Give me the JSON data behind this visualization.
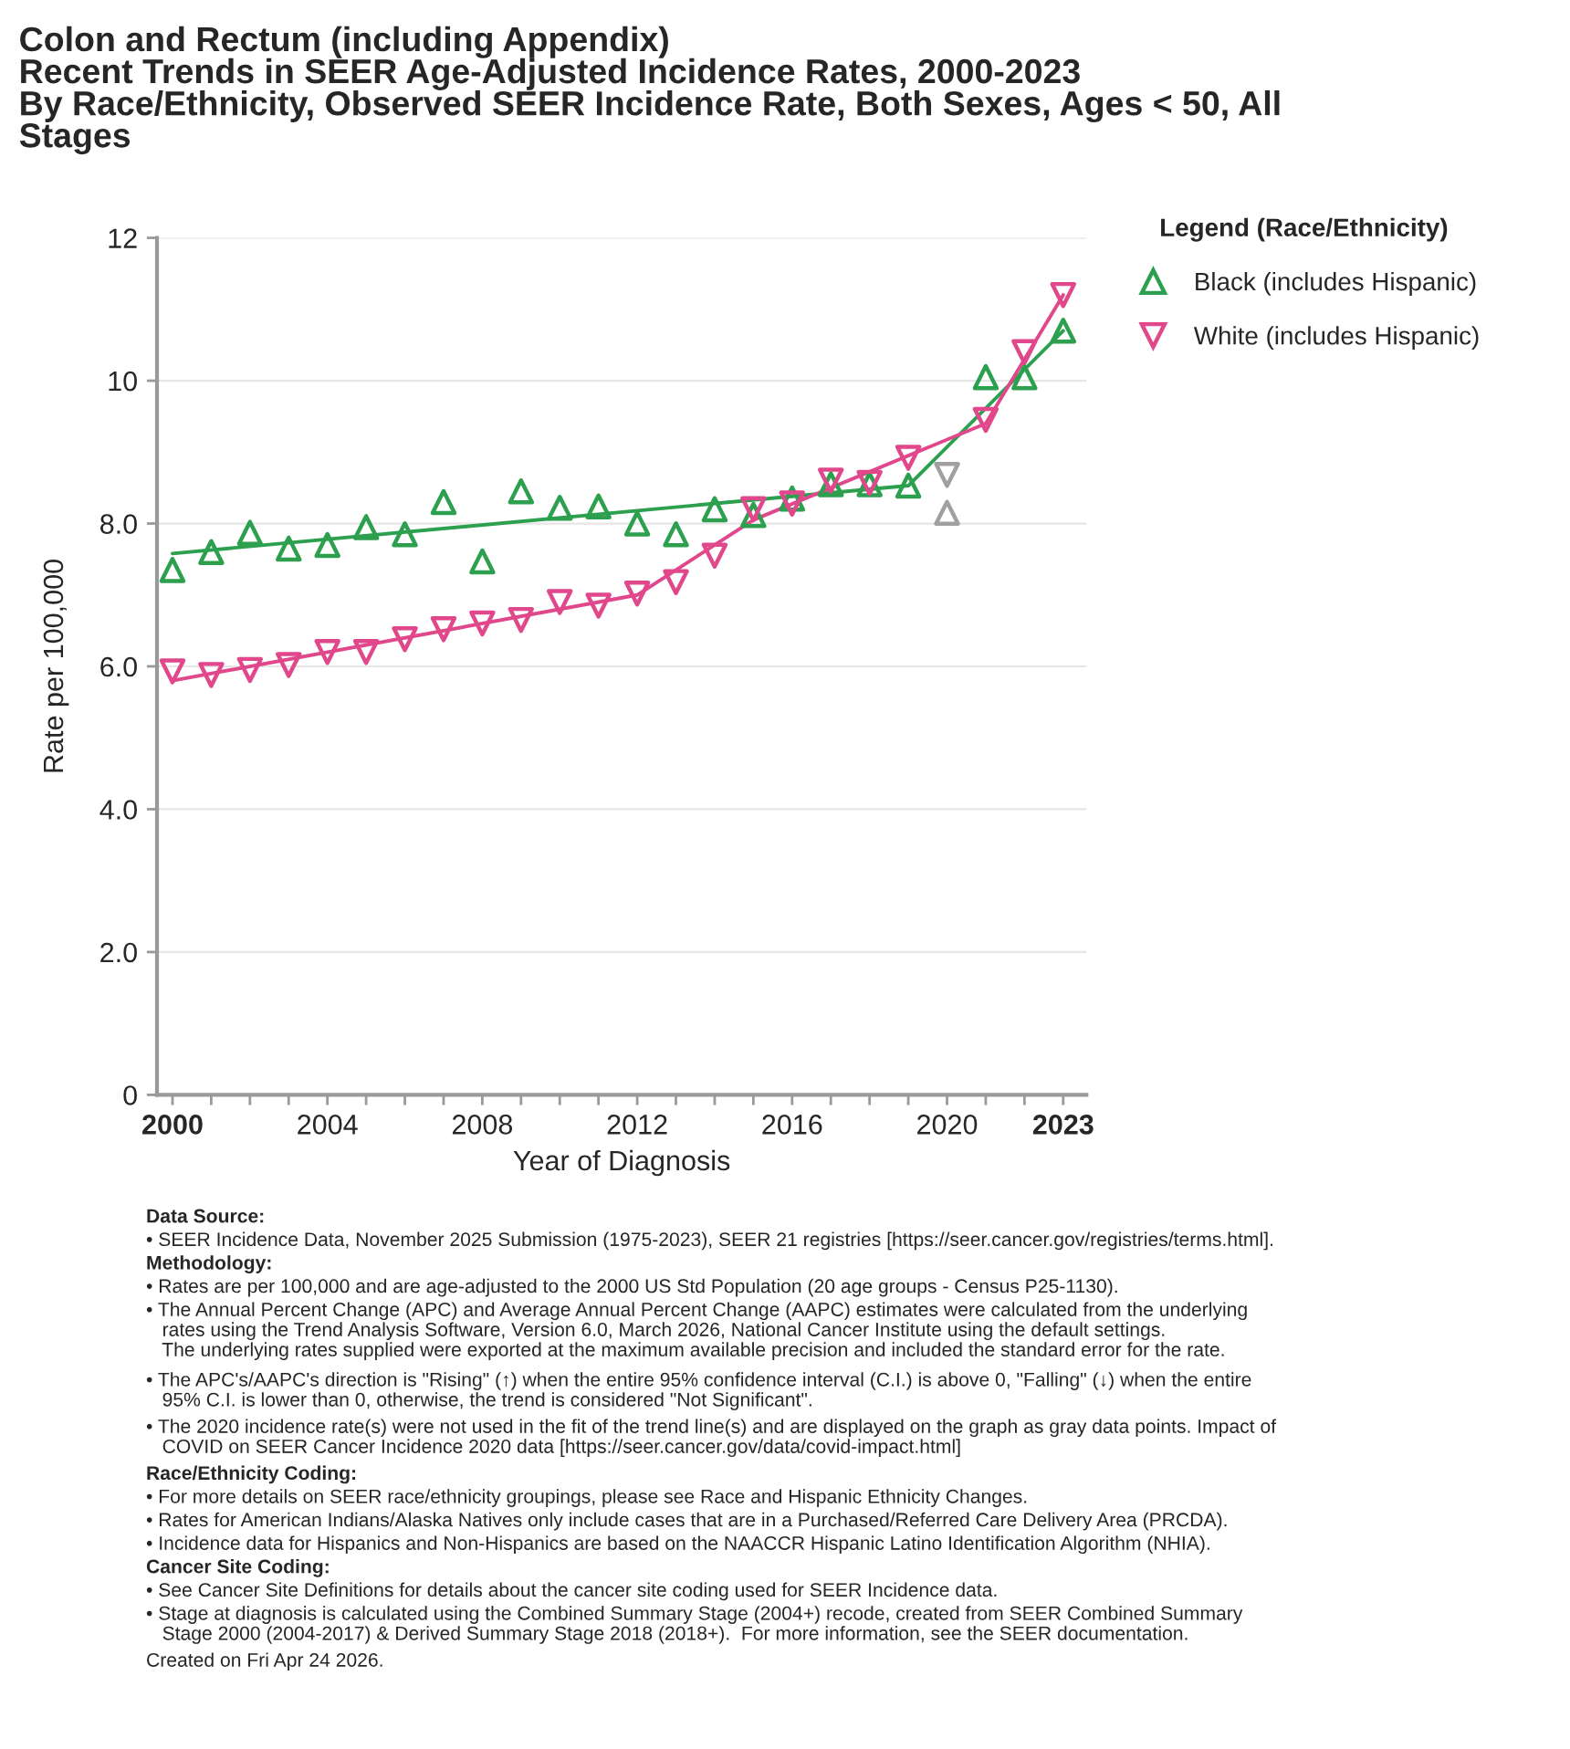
{
  "chart_data": {
    "type": "scatter",
    "title": "Colon and Rectum (including Appendix)\nRecent Trends in SEER Age-Adjusted Incidence Rates, 2000-2023\nBy Race/Ethnicity, Observed SEER Incidence Rate, Both Sexes, Ages < 50, All\nStages",
    "xlabel": "Year of Diagnosis",
    "ylabel": "Rate per 100,000",
    "legend_title": "Legend (Race/Ethnicity)",
    "x": [
      2000,
      2001,
      2002,
      2003,
      2004,
      2005,
      2006,
      2007,
      2008,
      2009,
      2010,
      2011,
      2012,
      2013,
      2014,
      2015,
      2016,
      2017,
      2018,
      2019,
      2020,
      2021,
      2022,
      2023
    ],
    "series": [
      {
        "name": "Black (includes Hispanic)",
        "marker": "triangle",
        "color": "#2ca04f",
        "values": [
          7.35,
          7.6,
          7.87,
          7.65,
          7.7,
          7.95,
          7.85,
          8.3,
          7.47,
          8.45,
          8.22,
          8.24,
          8.0,
          7.85,
          8.2,
          8.12,
          8.35,
          8.55,
          8.55,
          8.53,
          8.15,
          10.05,
          10.05,
          10.7
        ],
        "colors": [
          "#2ca04f",
          "#2ca04f",
          "#2ca04f",
          "#2ca04f",
          "#2ca04f",
          "#2ca04f",
          "#2ca04f",
          "#2ca04f",
          "#2ca04f",
          "#2ca04f",
          "#2ca04f",
          "#2ca04f",
          "#2ca04f",
          "#2ca04f",
          "#2ca04f",
          "#2ca04f",
          "#2ca04f",
          "#2ca04f",
          "#2ca04f",
          "#2ca04f",
          "#a0a0a0",
          "#2ca04f",
          "#2ca04f",
          "#2ca04f"
        ]
      },
      {
        "name": "White (includes Hispanic)",
        "marker": "triangle_down",
        "color": "#e0488b",
        "values": [
          5.93,
          5.88,
          5.95,
          6.02,
          6.2,
          6.2,
          6.38,
          6.52,
          6.6,
          6.65,
          6.9,
          6.85,
          7.02,
          7.18,
          7.55,
          8.2,
          8.28,
          8.6,
          8.57,
          8.92,
          8.68,
          9.45,
          10.4,
          11.2
        ],
        "colors": [
          "#e0488b",
          "#e0488b",
          "#e0488b",
          "#e0488b",
          "#e0488b",
          "#e0488b",
          "#e0488b",
          "#e0488b",
          "#e0488b",
          "#e0488b",
          "#e0488b",
          "#e0488b",
          "#e0488b",
          "#e0488b",
          "#e0488b",
          "#e0488b",
          "#e0488b",
          "#e0488b",
          "#e0488b",
          "#e0488b",
          "#a0a0a0",
          "#e0488b",
          "#e0488b",
          "#e0488b"
        ]
      },
      {
        "type": "line",
        "color": "#2ca04f",
        "x": [
          2000,
          2019,
          2023
        ],
        "values": [
          7.58,
          8.53,
          10.7
        ]
      },
      {
        "type": "line",
        "color": "#e0488b",
        "x": [
          2000,
          2012,
          2015,
          2021,
          2023
        ],
        "values": [
          5.8,
          7.0,
          8.05,
          9.4,
          11.2
        ]
      }
    ],
    "xlim": [
      1999.6,
      2023.6
    ],
    "ylim": [
      0,
      12
    ],
    "xticks": [
      {
        "value": 2000,
        "label": "2000"
      },
      {
        "value": 2001,
        "label": null
      },
      {
        "value": 2002,
        "label": null
      },
      {
        "value": 2003,
        "label": null
      },
      {
        "value": 2004,
        "label": "2004"
      },
      {
        "value": 2005,
        "label": null
      },
      {
        "value": 2006,
        "label": null
      },
      {
        "value": 2007,
        "label": null
      },
      {
        "value": 2008,
        "label": "2008"
      },
      {
        "value": 2009,
        "label": null
      },
      {
        "value": 2010,
        "label": null
      },
      {
        "value": 2011,
        "label": null
      },
      {
        "value": 2012,
        "label": "2012"
      },
      {
        "value": 2013,
        "label": null
      },
      {
        "value": 2014,
        "label": null
      },
      {
        "value": 2015,
        "label": null
      },
      {
        "value": 2016,
        "label": "2016"
      },
      {
        "value": 2017,
        "label": null
      },
      {
        "value": 2018,
        "label": null
      },
      {
        "value": 2019,
        "label": null
      },
      {
        "value": 2020,
        "label": "2020"
      },
      {
        "value": 2021,
        "label": null
      },
      {
        "value": 2022,
        "label": null
      },
      {
        "value": 2023,
        "label": "2023"
      }
    ],
    "yticks": [
      0,
      {
        "value": 2,
        "label": "2.0"
      },
      {
        "value": 4,
        "label": "4.0"
      },
      {
        "value": 6,
        "label": "6.0"
      },
      {
        "value": 8,
        "label": "8.0"
      },
      10,
      12
    ],
    "grid": "y",
    "legend": "top right",
    "annotations": [
      "Data Source:",
      "• SEER Incidence Data, November 2025 Submission (1975-2023), SEER 21 registries [https://seer.cancer.gov/registries/terms.html].",
      "Methodology:",
      "• Rates are per 100,000 and are age-adjusted to the 2000 US Std Population (20 age groups - Census P25-1130).",
      "• The Annual Percent Change (APC) and Average Annual Percent Change (AAPC) estimates were calculated from the underlying\n   rates using the Trend Analysis Software, Version 6.0, March 2026, National Cancer Institute using the default settings.\n   The underlying rates supplied were exported at the maximum available precision and included the standard error for the rate.",
      "• The APC's/AAPC's direction is \"Rising\" (↑) when the entire 95% confidence interval (C.I.) is above 0, \"Falling\" (↓) when the entire\n   95% C.I. is lower than 0, otherwise, the trend is considered \"Not Significant\".",
      "• The 2020 incidence rate(s) were not used in the fit of the trend line(s) and are displayed on the graph as gray data points. Impact of\n   COVID on SEER Cancer Incidence 2020 data [https://seer.cancer.gov/data/covid-impact.html]",
      "Race/Ethnicity Coding:",
      "• For more details on SEER race/ethnicity groupings, please see Race and Hispanic Ethnicity Changes.",
      "• Rates for American Indians/Alaska Natives only include cases that are in a Purchased/Referred Care Delivery Area (PRCDA).",
      "• Incidence data for Hispanics and Non-Hispanics are based on the NAACCR Hispanic Latino Identification Algorithm (NHIA).",
      "Cancer Site Coding:",
      "• See Cancer Site Definitions for details about the cancer site coding used for SEER Incidence data.",
      "• Stage at diagnosis is calculated using the Combined Summary Stage (2004+) recode, created from SEER Combined Summary\n   Stage 2000 (2004-2017) & Derived Summary Stage 2018 (2018+).  For more information, see the SEER documentation.",
      "Created on Fri Apr 24 2026."
    ]
  }
}
